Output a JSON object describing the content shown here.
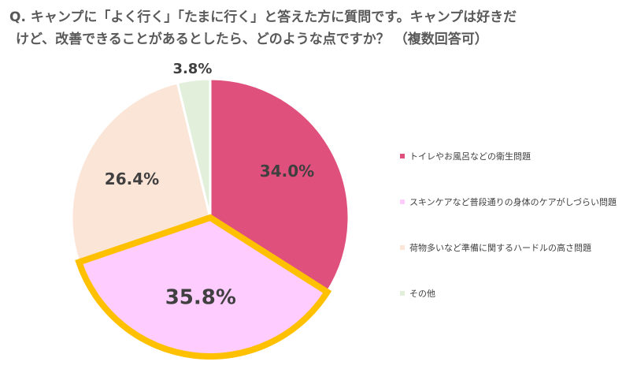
{
  "title": {
    "line1": "Q. キャンプに「よく行く」「たまに行く」と答えた方に質問です。キャンプは好きだ",
    "line2": "けど、改善できることがあるとしたら、どのような点ですか？ （複数回答可）"
  },
  "chart_data": {
    "type": "pie",
    "categories": [
      "トイレやお風呂などの衛生問題",
      "スキンケアなど普段通りの身体のケアがしづらい問題",
      "荷物多いなど準備に関するハードルの高さ問題",
      "その他"
    ],
    "values": [
      34.0,
      35.8,
      26.4,
      3.8
    ],
    "value_labels": [
      "34.0%",
      "35.8%",
      "26.4%",
      "3.8%"
    ],
    "colors": [
      "#e0507c",
      "#ffccff",
      "#fbe5d6",
      "#e2efda"
    ],
    "highlight_index": 1,
    "highlight_color": "#ffc000",
    "start_angle_deg": 0,
    "direction": "clockwise",
    "legend_position": "right"
  }
}
